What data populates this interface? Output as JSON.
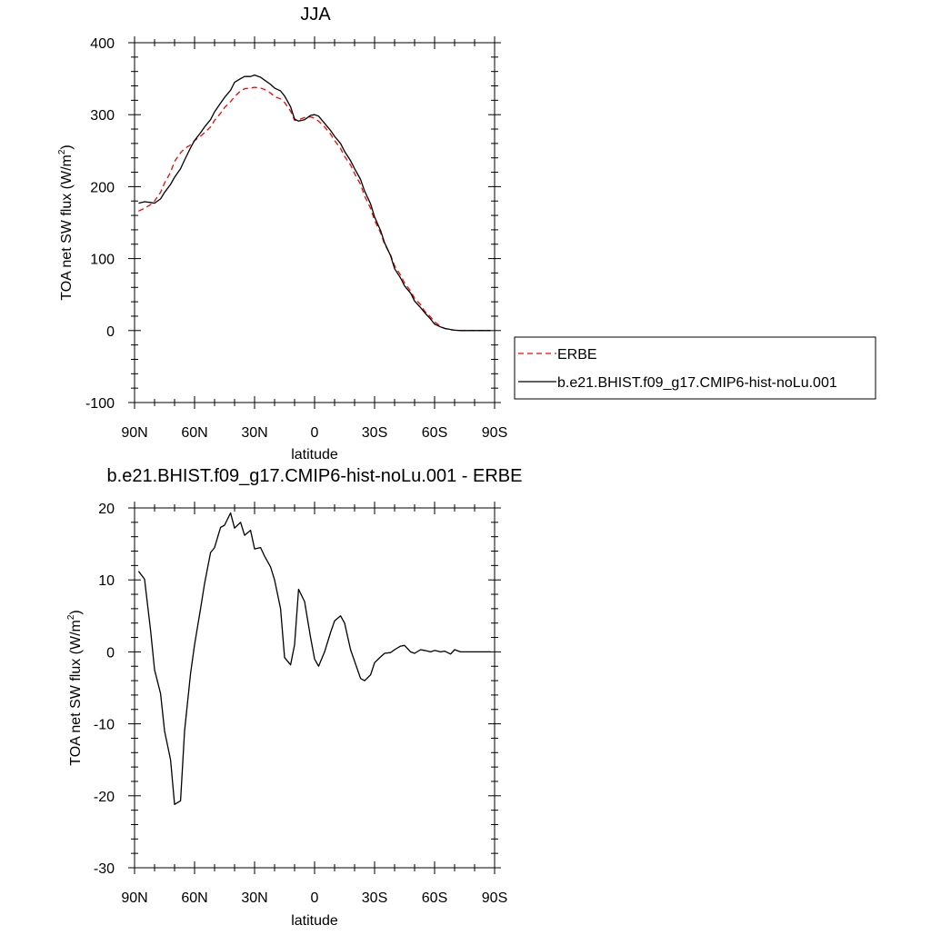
{
  "chart_data": [
    {
      "type": "line",
      "title": "JJA",
      "xlabel": "latitude",
      "ylabel": "TOA net SW flux (W/m²)",
      "ylabel_main": "TOA net SW flux (W/m",
      "ylabel_sup": "2",
      "ylabel_close": ")",
      "xlim": [
        90,
        -90
      ],
      "ylim": [
        -100,
        400
      ],
      "xticks": [
        90,
        60,
        30,
        0,
        -30,
        -60,
        -90
      ],
      "xtick_labels": [
        "90N",
        "60N",
        "30N",
        "0",
        "30S",
        "60S",
        "90S"
      ],
      "yticks": [
        -100,
        0,
        100,
        200,
        300,
        400
      ],
      "ytick_labels": [
        "-100",
        "0",
        "100",
        "200",
        "300",
        "400"
      ],
      "legend_position": "right",
      "series": [
        {
          "name": "ERBE",
          "color": "#ff0000",
          "dash": "dashed",
          "x": [
            88,
            85,
            82,
            80,
            77,
            75,
            72,
            70,
            67,
            65,
            62,
            60,
            57,
            55,
            52,
            50,
            47,
            45,
            42,
            40,
            37,
            35,
            32,
            30,
            27,
            25,
            22,
            20,
            17,
            15,
            12,
            10,
            8,
            5,
            2,
            0,
            -2,
            -5,
            -8,
            -10,
            -13,
            -15,
            -18,
            -20,
            -23,
            -25,
            -28,
            -30,
            -33,
            -35,
            -38,
            -40,
            -43,
            -45,
            -48,
            -50,
            -53,
            -55,
            -58,
            -60,
            -63,
            -65,
            -68,
            -70,
            -73,
            -75,
            -78,
            -80,
            -83,
            -85,
            -88
          ],
          "y": [
            166,
            170,
            175,
            180,
            192,
            205,
            220,
            235,
            247,
            253,
            258,
            264,
            270,
            275,
            283,
            292,
            302,
            310,
            318,
            325,
            333,
            336,
            337,
            338,
            337,
            335,
            330,
            325,
            322,
            317,
            305,
            292,
            293,
            296,
            297,
            295,
            291,
            283,
            273,
            264,
            253,
            242,
            230,
            218,
            203,
            187,
            170,
            153,
            136,
            120,
            105,
            90,
            77,
            66,
            55,
            45,
            36,
            27,
            19,
            12,
            6,
            3,
            1,
            0.5,
            0,
            0,
            0,
            0,
            0,
            0,
            0
          ]
        },
        {
          "name": "b.e21.BHIST.f09_g17.CMIP6-hist-noLu.001",
          "color": "#000000",
          "dash": "solid",
          "x": [
            88,
            85,
            82,
            80,
            77,
            75,
            72,
            70,
            67,
            65,
            62,
            60,
            57,
            55,
            52,
            50,
            47,
            45,
            42,
            40,
            37,
            35,
            32,
            30,
            27,
            25,
            22,
            20,
            17,
            15,
            12,
            10,
            8,
            5,
            2,
            0,
            -2,
            -5,
            -8,
            -10,
            -13,
            -15,
            -18,
            -20,
            -23,
            -25,
            -28,
            -30,
            -33,
            -35,
            -38,
            -40,
            -43,
            -45,
            -48,
            -50,
            -53,
            -55,
            -58,
            -60,
            -63,
            -65,
            -68,
            -70,
            -73,
            -75,
            -78,
            -80,
            -83,
            -85,
            -88
          ],
          "y": [
            177,
            179,
            178,
            177,
            183,
            192,
            203,
            213,
            225,
            237,
            254,
            264,
            275,
            283,
            293,
            304,
            316,
            324,
            334,
            345,
            350,
            353,
            353,
            355,
            352,
            348,
            342,
            337,
            333,
            326,
            311,
            294,
            291,
            293,
            299,
            300,
            298,
            288,
            278,
            270,
            260,
            249,
            236,
            225,
            210,
            194,
            176,
            158,
            139,
            122,
            104,
            86,
            73,
            62,
            52,
            41,
            32,
            25,
            16,
            9,
            5,
            3,
            1.5,
            0.5,
            0,
            0,
            0,
            0,
            0,
            0,
            0
          ]
        }
      ]
    },
    {
      "type": "line",
      "title": "b.e21.BHIST.f09_g17.CMIP6-hist-noLu.001 - ERBE",
      "xlabel": "latitude",
      "ylabel": "TOA net SW flux (W/m²)",
      "ylabel_main": "TOA net SW flux (W/m",
      "ylabel_sup": "2",
      "ylabel_close": ")",
      "xlim": [
        90,
        -90
      ],
      "ylim": [
        -30,
        20
      ],
      "xticks": [
        90,
        60,
        30,
        0,
        -30,
        -60,
        -90
      ],
      "xtick_labels": [
        "90N",
        "60N",
        "30N",
        "0",
        "30S",
        "60S",
        "90S"
      ],
      "yticks": [
        -30,
        -20,
        -10,
        0,
        10,
        20
      ],
      "ytick_labels": [
        "-30",
        "-20",
        "-10",
        "0",
        "10",
        "20"
      ],
      "series": [
        {
          "color": "#000000",
          "dash": "solid",
          "x": [
            88,
            85,
            82,
            80,
            77,
            75,
            72,
            70,
            67,
            65,
            62,
            60,
            57,
            55,
            52,
            50,
            47,
            45,
            42,
            40,
            37,
            35,
            32,
            30,
            27,
            25,
            22,
            20,
            17,
            15,
            12,
            10,
            8,
            5,
            2,
            0,
            -2,
            -5,
            -8,
            -10,
            -13,
            -15,
            -18,
            -20,
            -23,
            -25,
            -28,
            -30,
            -33,
            -35,
            -38,
            -40,
            -43,
            -45,
            -48,
            -50,
            -53,
            -55,
            -58,
            -60,
            -63,
            -65,
            -68,
            -70,
            -73,
            -75,
            -78,
            -80,
            -83,
            -85,
            -88
          ],
          "y": [
            11.2,
            10.1,
            3.0,
            -2.5,
            -5.8,
            -11.0,
            -15.0,
            -21.2,
            -20.7,
            -11.0,
            -3.0,
            1.0,
            6.0,
            9.5,
            13.8,
            14.5,
            17.3,
            17.6,
            19.3,
            17.2,
            18.0,
            16.2,
            16.9,
            14.3,
            14.5,
            13.3,
            11.8,
            10.0,
            6.0,
            -0.8,
            -1.8,
            1.0,
            8.7,
            7.0,
            2.0,
            -1.0,
            -2.0,
            0.0,
            2.7,
            4.3,
            5.0,
            4.0,
            0.3,
            -1.3,
            -3.7,
            -4.0,
            -3.2,
            -1.5,
            -0.7,
            -0.2,
            -0.1,
            0.3,
            0.8,
            0.9,
            0.0,
            -0.2,
            0.3,
            0.2,
            0.0,
            0.2,
            0.0,
            0.1,
            -0.3,
            0.3,
            0.0,
            0.0,
            0.0,
            0.0,
            0.0,
            0.0,
            0.0
          ]
        }
      ]
    }
  ]
}
